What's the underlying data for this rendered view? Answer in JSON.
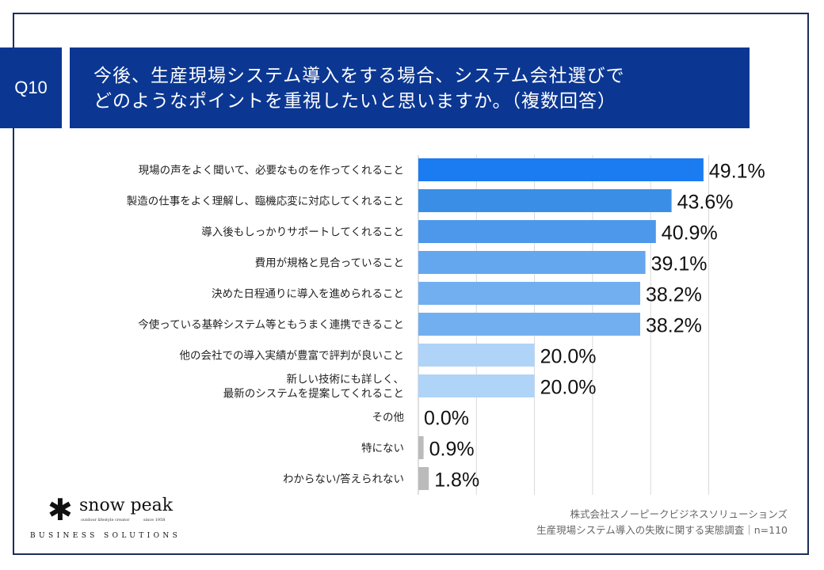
{
  "question": {
    "number": "Q10",
    "title_line1": "今後、生産現場システム導入をする場合、システム会社選びで",
    "title_line2": "どのようなポイントを重視したいと思いますか。（複数回答）"
  },
  "chart_data": {
    "type": "bar",
    "orientation": "horizontal",
    "categories": [
      [
        "現場の声をよく聞いて、必要なものを作ってくれること"
      ],
      [
        "製造の仕事をよく理解し、臨機応変に対応してくれること"
      ],
      [
        "導入後もしっかりサポートしてくれること"
      ],
      [
        "費用が規格と見合っていること"
      ],
      [
        "決めた日程通りに導入を進められること"
      ],
      [
        "今使っている基幹システム等ともうまく連携できること"
      ],
      [
        "他の会社での導入実績が豊富で評判が良いこと"
      ],
      [
        "新しい技術にも詳しく、",
        "最新のシステムを提案してくれること"
      ],
      [
        "その他"
      ],
      [
        "特にない"
      ],
      [
        "わからない/答えられない"
      ]
    ],
    "values": [
      49.1,
      43.6,
      40.9,
      39.1,
      38.2,
      38.2,
      20.0,
      20.0,
      0.0,
      0.9,
      1.8
    ],
    "value_labels": [
      "49.1%",
      "43.6%",
      "40.9%",
      "39.1%",
      "38.2%",
      "38.2%",
      "20.0%",
      "20.0%",
      "0.0%",
      "0.9%",
      "1.8%"
    ],
    "colors": [
      "#1a7cf0",
      "#3b8ee6",
      "#4d98ea",
      "#64a7ee",
      "#72aff0",
      "#72aff0",
      "#b0d3f8",
      "#b0d3f8",
      "#bbbbbb",
      "#bbbbbb",
      "#bbbbbb"
    ],
    "xlim": [
      0,
      50
    ],
    "grid": true
  },
  "logo": {
    "mark": "✱",
    "brand": "snow peak",
    "tagline": "outdoor lifestyle creator",
    "since": "since 1958",
    "subtitle": "BUSINESS SOLUTIONS"
  },
  "source": {
    "line1": "株式会社スノーピークビジネスソリューションズ",
    "line2": "生産現場システム導入の失敗に関する実態調査｜n=110"
  },
  "colors": {
    "header_bg": "#0b3793",
    "frame": "#1b2d5a"
  }
}
